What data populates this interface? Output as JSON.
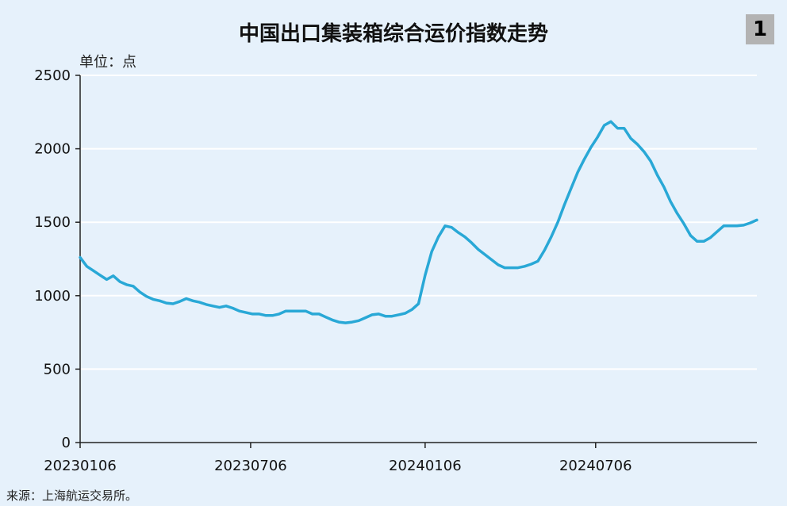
{
  "badge": "1",
  "unit_label": "单位：点",
  "source": "来源：上海航运交易所。",
  "colors": {
    "line": "#29a8d6",
    "background": "#e6f1fb",
    "grid": "#ffffff",
    "axis": "#222222",
    "badge": "#b3b3b3"
  },
  "chart_data": {
    "type": "line",
    "title": "中国出口集装箱综合运价指数走势",
    "xlabel": "",
    "ylabel": "",
    "ylim": [
      0,
      2500
    ],
    "yticks": [
      0,
      500,
      1000,
      1500,
      2000,
      2500
    ],
    "grid": "horizontal",
    "xticks": [
      {
        "label": "20230106",
        "index": 0
      },
      {
        "label": "20230706",
        "index": 25.7
      },
      {
        "label": "20240106",
        "index": 52
      },
      {
        "label": "20240706",
        "index": 77.7
      }
    ],
    "series": [
      {
        "values": [
          1260,
          1200,
          1170,
          1140,
          1110,
          1135,
          1095,
          1075,
          1065,
          1025,
          995,
          975,
          965,
          950,
          945,
          960,
          980,
          965,
          955,
          940,
          930,
          920,
          930,
          915,
          895,
          885,
          875,
          875,
          865,
          865,
          875,
          895,
          895,
          895,
          895,
          875,
          875,
          855,
          835,
          820,
          815,
          820,
          830,
          850,
          870,
          875,
          860,
          860,
          870,
          880,
          905,
          945,
          1140,
          1300,
          1400,
          1475,
          1465,
          1430,
          1400,
          1360,
          1315,
          1280,
          1245,
          1210,
          1190,
          1190,
          1190,
          1200,
          1215,
          1235,
          1310,
          1400,
          1500,
          1620,
          1730,
          1840,
          1930,
          2010,
          2080,
          2160,
          2185,
          2140,
          2140,
          2070,
          2030,
          1980,
          1915,
          1820,
          1740,
          1640,
          1560,
          1490,
          1410,
          1370,
          1370,
          1395,
          1435,
          1475,
          1475,
          1475,
          1480,
          1495,
          1515
        ]
      }
    ]
  }
}
